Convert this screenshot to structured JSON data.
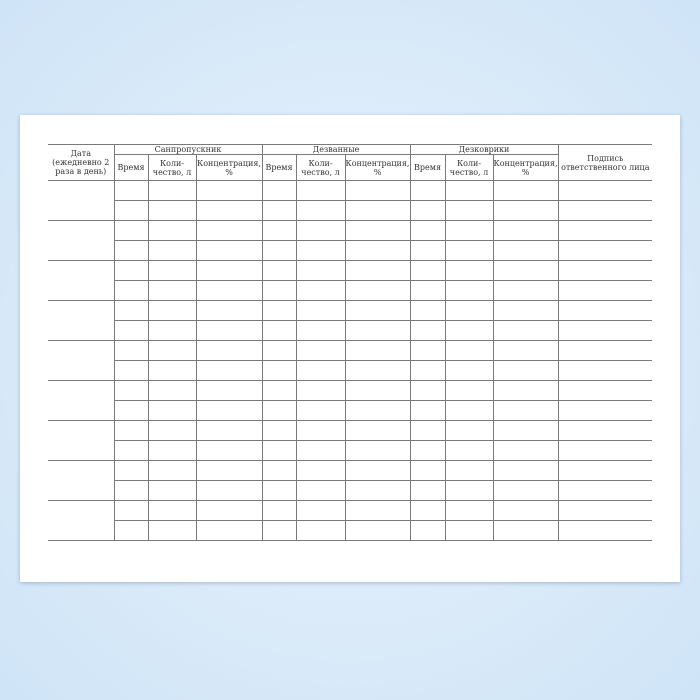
{
  "form": {
    "date_header": "Дата (ежедневно 2 раза в день)",
    "groups": [
      "Санпропускник",
      "Дезванные",
      "Дезковрики"
    ],
    "sub_headers": [
      "Время",
      "Коли-чество, л",
      "Концентрация, %"
    ],
    "signature_header": "Подпись ответственного лица",
    "day_count": 9,
    "rows_per_day": 2
  }
}
